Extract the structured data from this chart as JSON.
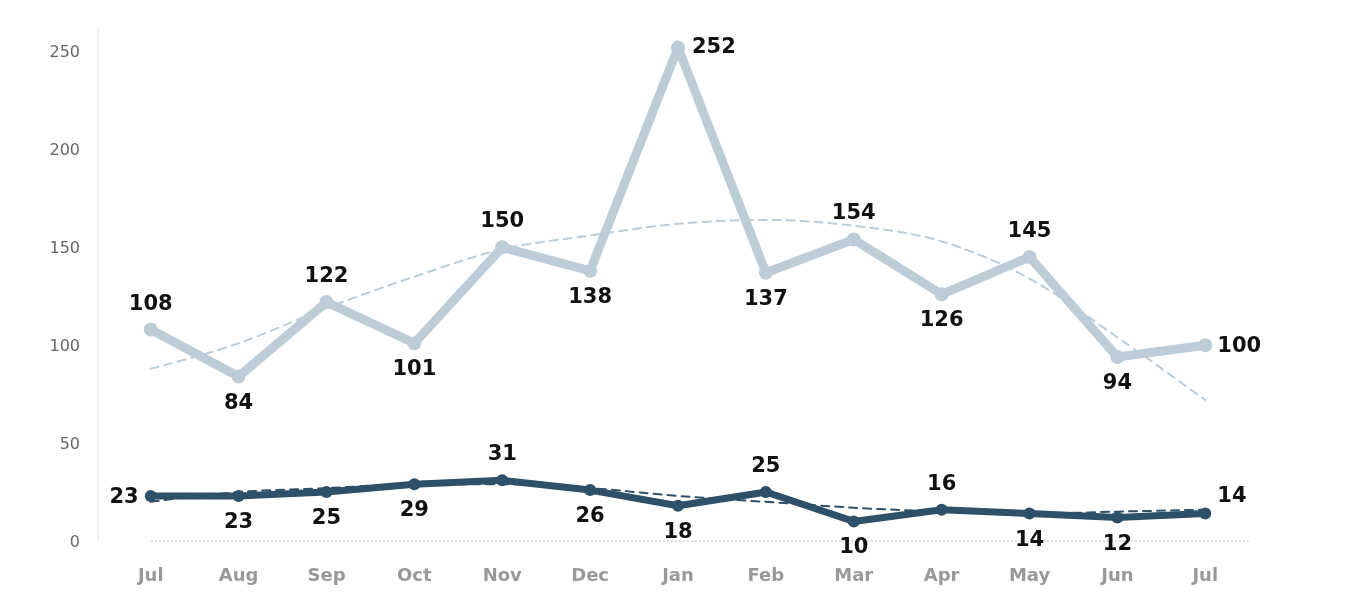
{
  "chart_data": {
    "type": "line",
    "ylim": [
      0,
      262
    ],
    "categories": [
      "Jul",
      "Aug",
      "Sep",
      "Oct",
      "Nov",
      "Dec",
      "Jan",
      "Feb",
      "Mar",
      "Apr",
      "May",
      "Jun",
      "Jul"
    ],
    "yticks": [
      0,
      50,
      100,
      150,
      200,
      250
    ],
    "grid": false,
    "marker": "circle",
    "line_style": "solid",
    "series": [
      {
        "color": "#bccdd8",
        "values": [
          108,
          84,
          122,
          101,
          150,
          138,
          252,
          137,
          154,
          126,
          145,
          94,
          100
        ],
        "value_labels": [
          "108",
          "84",
          "122",
          "101",
          "150",
          "138",
          "252",
          "137",
          "154",
          "126",
          "145",
          "94",
          "100"
        ]
      },
      {
        "color": "#2e5068",
        "values": [
          23,
          23,
          25,
          29,
          31,
          26,
          18,
          25,
          10,
          16,
          14,
          12,
          14
        ],
        "value_labels": [
          "23",
          "23",
          "25",
          "29",
          "31",
          "26",
          "18",
          "25",
          "10",
          "16",
          "14",
          "12",
          "14"
        ]
      },
      {
        "type": "line",
        "color": "#bccdd8",
        "line_style": "dashed",
        "marker": "none",
        "values": [
          88,
          101,
          119,
          135,
          149,
          156,
          162,
          164,
          161,
          153,
          134,
          104,
          72
        ]
      },
      {
        "type": "line",
        "color": "#2e5068",
        "line_style": "dashed",
        "marker": "none",
        "values": [
          20,
          25,
          27,
          29,
          29,
          27,
          23,
          20,
          17,
          15,
          14,
          15,
          16
        ]
      }
    ]
  }
}
